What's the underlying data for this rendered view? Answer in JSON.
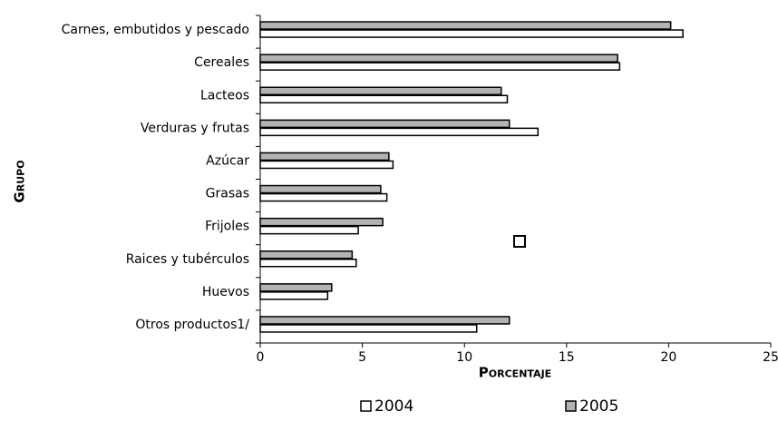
{
  "chart_data": {
    "type": "hbar",
    "x_label": "Porcentaje",
    "y_label": "Grupo",
    "categories": [
      "Carnes, embutidos y pescado",
      "Cereales",
      "Lacteos",
      "Verduras y frutas",
      "Azúcar",
      "Grasas",
      "Frijoles",
      "Raices y tubérculos",
      "Huevos",
      "Otros productos1/"
    ],
    "series": [
      {
        "name": "2004",
        "color": "#ffffff",
        "values": [
          20.7,
          17.6,
          12.1,
          13.6,
          6.5,
          6.2,
          4.8,
          4.7,
          3.3,
          10.6
        ]
      },
      {
        "name": "2005",
        "color": "#b3b3b3",
        "values": [
          20.1,
          17.5,
          11.8,
          12.2,
          6.3,
          5.9,
          6.0,
          4.5,
          3.5,
          12.2
        ]
      }
    ],
    "xlim": [
      0,
      25
    ],
    "xticks": [
      0,
      5,
      10,
      15,
      20,
      25
    ],
    "grid": false,
    "legend": "bottom"
  }
}
